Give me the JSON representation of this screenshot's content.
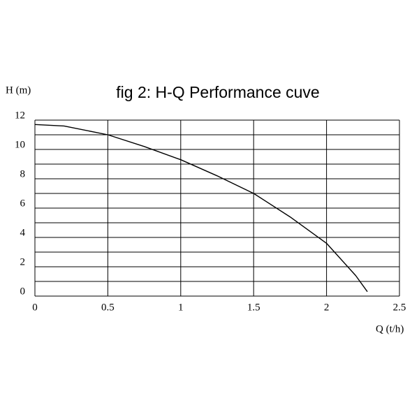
{
  "chart_data": {
    "type": "line",
    "title": "fig 2: H-Q Performance cuve",
    "xlabel": "Q (t/h)",
    "ylabel": "H (m)",
    "x": [
      0,
      0.2,
      0.5,
      0.75,
      1.0,
      1.25,
      1.5,
      1.75,
      2.0,
      2.2,
      2.28
    ],
    "series": [
      {
        "color": "#000000",
        "values": [
          11.7,
          11.6,
          11.0,
          10.2,
          9.3,
          8.2,
          7.0,
          5.4,
          3.6,
          1.4,
          0.3
        ]
      }
    ],
    "xlim": [
      0,
      2.5
    ],
    "ylim": [
      0,
      12
    ],
    "xticks": [
      0,
      0.5,
      1,
      1.5,
      2,
      2.5
    ],
    "yticks": [
      0,
      2,
      4,
      6,
      8,
      10,
      12
    ],
    "minor_yticks": [
      1,
      3,
      5,
      7,
      9,
      11
    ],
    "grid": true
  }
}
